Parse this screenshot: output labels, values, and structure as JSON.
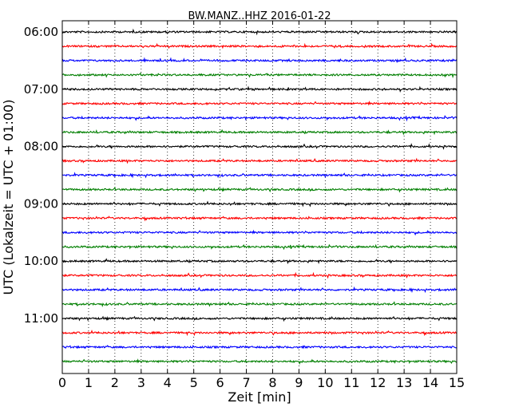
{
  "chart_data": {
    "type": "line",
    "title": "BW.MANZ..HHZ 2016-01-22",
    "xlabel": "Zeit  [min]",
    "ylabel": "UTC (Lokalzeit = UTC + 01:00)",
    "xlim": [
      0,
      15
    ],
    "x_ticks": [
      "0",
      "1",
      "2",
      "3",
      "4",
      "5",
      "6",
      "7",
      "8",
      "9",
      "10",
      "11",
      "12",
      "13",
      "14",
      "15"
    ],
    "y_ticks": [
      "06:00",
      "07:00",
      "08:00",
      "09:00",
      "10:00",
      "11:00"
    ],
    "grid": "vertical dotted at each minute",
    "trace_minutes": 15,
    "traces_per_hour": 4,
    "trace_colors": [
      "#000000",
      "#ff0000",
      "#0000ff",
      "#007f00"
    ],
    "trace_starts": [
      "06:00",
      "06:15",
      "06:30",
      "06:45",
      "07:00",
      "07:15",
      "07:30",
      "07:45",
      "08:00",
      "08:15",
      "08:30",
      "08:45",
      "09:00",
      "09:15",
      "09:30",
      "09:45",
      "10:00",
      "10:15",
      "10:30",
      "10:45",
      "11:00",
      "11:15",
      "11:30",
      "11:45"
    ]
  }
}
